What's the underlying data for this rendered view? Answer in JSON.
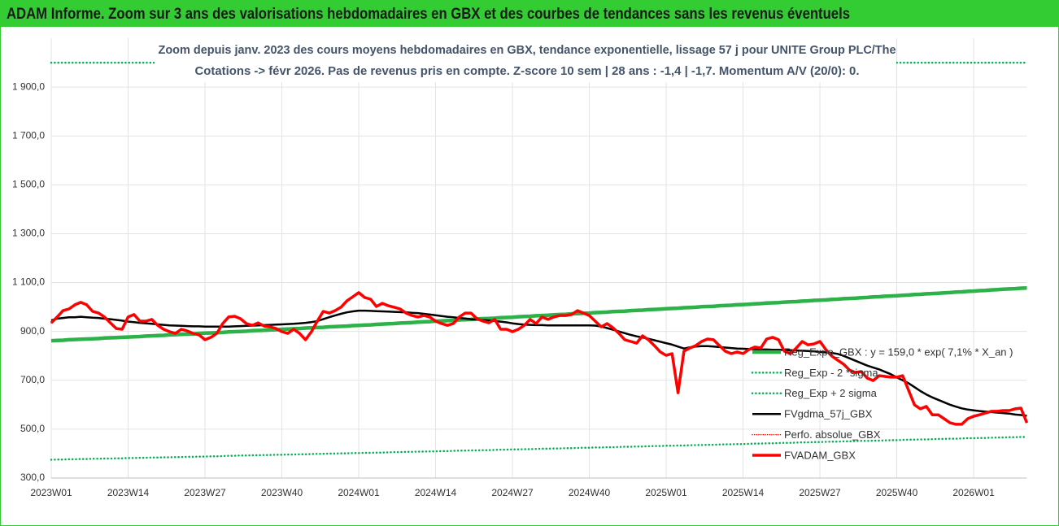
{
  "chart_data": {
    "type": "line",
    "header": "ADAM Informe. Zoom sur 3 ans des valorisations hebdomadaires en GBX et des courbes de tendances sans les revenus éventuels",
    "subtitle": [
      "Zoom depuis janv. 2023 des cours moyens hebdomadaires en GBX, tendance exponentielle, lissage 57 j pour UNITE Group PLC/The",
      "Cotations -> févr 2026.  Pas de revenus pris en compte. Z-score 10 sem | 28 ans : -1,4 | -1,7. Momentum A/V (20/0): 0."
    ],
    "categories": [
      "2023W01",
      null,
      null,
      null,
      null,
      null,
      null,
      null,
      null,
      null,
      null,
      null,
      null,
      "2023W14",
      null,
      null,
      null,
      null,
      null,
      null,
      null,
      null,
      null,
      null,
      null,
      null,
      "2023W27",
      null,
      null,
      null,
      null,
      null,
      null,
      null,
      null,
      null,
      null,
      null,
      null,
      "2023W40",
      null,
      null,
      null,
      null,
      null,
      null,
      null,
      null,
      null,
      null,
      null,
      null,
      "2024W01",
      null,
      null,
      null,
      null,
      null,
      null,
      null,
      null,
      null,
      null,
      null,
      null,
      "2024W14",
      null,
      null,
      null,
      null,
      null,
      null,
      null,
      null,
      null,
      null,
      null,
      null,
      "2024W27",
      null,
      null,
      null,
      null,
      null,
      null,
      null,
      null,
      null,
      null,
      null,
      null,
      "2024W40",
      null,
      null,
      null,
      null,
      null,
      null,
      null,
      null,
      null,
      null,
      null,
      null,
      "2025W01",
      null,
      null,
      null,
      null,
      null,
      null,
      null,
      null,
      null,
      null,
      null,
      null,
      "2025W14",
      null,
      null,
      null,
      null,
      null,
      null,
      null,
      null,
      null,
      null,
      null,
      null,
      "2025W27",
      null,
      null,
      null,
      null,
      null,
      null,
      null,
      null,
      null,
      null,
      null,
      null,
      "2025W40",
      null,
      null,
      null,
      null,
      null,
      null,
      null,
      null,
      null,
      null,
      null,
      null,
      "2026W01",
      null,
      null,
      null,
      null,
      null,
      null,
      null,
      null,
      null
    ],
    "ylim": [
      300,
      2100
    ],
    "yticks": [
      {
        "value": 300,
        "label": "300,0"
      },
      {
        "value": 500,
        "label": "500,0"
      },
      {
        "value": 700,
        "label": "700,0"
      },
      {
        "value": 900,
        "label": "900,0"
      },
      {
        "value": 1100,
        "label": "1 100,0"
      },
      {
        "value": 1300,
        "label": "1 300,0"
      },
      {
        "value": 1500,
        "label": "1 500,0"
      },
      {
        "value": 1700,
        "label": "1 700,0"
      },
      {
        "value": 1900,
        "label": "1 900,0"
      }
    ],
    "grid": true,
    "legend": "lower-right",
    "series": [
      {
        "name": "Reg_Expo_GBX : y = 159,0 * exp( 7,1% *  X_an )",
        "color": "#2db24a",
        "style": "solid",
        "width": 4.5,
        "values": [
          862,
          863,
          864,
          866,
          867,
          868,
          869,
          870,
          871,
          873,
          874,
          875,
          876,
          877,
          878,
          879,
          881,
          882,
          883,
          884,
          886,
          887,
          888,
          889,
          890,
          892,
          893,
          894,
          895,
          896,
          898,
          899,
          900,
          901,
          903,
          904,
          905,
          906,
          907,
          909,
          910,
          911,
          912,
          914,
          915,
          916,
          917,
          919,
          920,
          921,
          922,
          924,
          925,
          926,
          927,
          929,
          930,
          931,
          932,
          934,
          935,
          936,
          938,
          939,
          940,
          942,
          943,
          944,
          945,
          947,
          948,
          949,
          951,
          952,
          953,
          954,
          956,
          957,
          958,
          960,
          961,
          962,
          964,
          965,
          966,
          968,
          969,
          970,
          972,
          973,
          974,
          975,
          977,
          978,
          979,
          981,
          982,
          983,
          985,
          986,
          987,
          989,
          990,
          991,
          993,
          994,
          995,
          997,
          998,
          999,
          1001,
          1002,
          1003,
          1005,
          1006,
          1007,
          1009,
          1010,
          1011,
          1013,
          1014,
          1016,
          1017,
          1018,
          1020,
          1021,
          1022,
          1024,
          1025,
          1027,
          1028,
          1029,
          1031,
          1032,
          1034,
          1035,
          1036,
          1038,
          1039,
          1041,
          1042,
          1044,
          1045,
          1046,
          1048,
          1049,
          1051,
          1052,
          1054,
          1055,
          1056,
          1058,
          1059,
          1061,
          1062,
          1064,
          1065,
          1067,
          1068,
          1070,
          1071,
          1073,
          1074,
          1075,
          1077,
          1078
        ]
      },
      {
        "name": "Reg_Exp - 2 *sigma",
        "color": "#00b050",
        "style": "dotted",
        "width": 2.5,
        "values": [
          375,
          376,
          376,
          377,
          377,
          378,
          378,
          379,
          379,
          380,
          380,
          381,
          381,
          382,
          382,
          383,
          383,
          384,
          384,
          385,
          385,
          386,
          386,
          387,
          387,
          388,
          388,
          389,
          389,
          390,
          391,
          391,
          392,
          392,
          393,
          393,
          394,
          394,
          395,
          395,
          396,
          396,
          397,
          397,
          398,
          399,
          399,
          400,
          400,
          401,
          401,
          402,
          402,
          403,
          403,
          404,
          404,
          405,
          406,
          406,
          407,
          407,
          408,
          408,
          409,
          409,
          410,
          410,
          411,
          412,
          412,
          413,
          413,
          414,
          414,
          415,
          416,
          416,
          417,
          417,
          418,
          418,
          419,
          420,
          420,
          421,
          421,
          422,
          422,
          423,
          424,
          424,
          425,
          425,
          426,
          426,
          427,
          428,
          428,
          429,
          429,
          430,
          431,
          431,
          432,
          432,
          433,
          433,
          434,
          435,
          435,
          436,
          436,
          437,
          438,
          438,
          439,
          439,
          440,
          441,
          441,
          442,
          442,
          443,
          444,
          444,
          445,
          446,
          446,
          447,
          447,
          448,
          449,
          449,
          450,
          450,
          451,
          452,
          452,
          453,
          453,
          454,
          455,
          455,
          456,
          457,
          457,
          458,
          458,
          459,
          460,
          460,
          461,
          461,
          462,
          463,
          463,
          464,
          464,
          465,
          466,
          466,
          467,
          467,
          468,
          468
        ]
      },
      {
        "name": "Reg_Exp + 2 sigma",
        "color": "#00b050",
        "style": "dotted",
        "width": 2.5,
        "values": [
          2000,
          2000,
          2000,
          2000,
          2000,
          2000,
          2000,
          2000,
          2000,
          2000,
          2000,
          2000,
          2000,
          2000,
          2000,
          2000,
          2000,
          2000,
          2000,
          2000,
          2000,
          2000,
          2000,
          2000,
          2000,
          2000,
          2000,
          2000,
          2000,
          2000,
          2000,
          2000,
          2000,
          2000,
          2000,
          2000,
          2000,
          2000,
          2000,
          2000,
          2000,
          2000,
          2000,
          2000,
          2000,
          2000,
          2000,
          2000,
          2000,
          2000,
          2000,
          2000,
          2000,
          2000,
          2000,
          2000,
          2000,
          2000,
          2000,
          2000,
          2000,
          2000,
          2000,
          2000,
          2000,
          2000,
          2000,
          2000,
          2000,
          2000,
          2000,
          2000,
          2000,
          2000,
          2000,
          2000,
          2000,
          2000,
          2000,
          2000,
          2000,
          2000,
          2000,
          2000,
          2000,
          2000,
          2000,
          2000,
          2000,
          2000,
          2000,
          2000,
          2000,
          2000,
          2000,
          2000,
          2000,
          2000,
          2000,
          2000,
          2000,
          2000,
          2000,
          2000,
          2000,
          2000,
          2000,
          2000,
          2000,
          2000,
          2000,
          2000,
          2000,
          2000,
          2000,
          2000,
          2000,
          2000,
          2000,
          2000,
          2000,
          2000,
          2000,
          2000,
          2000,
          2000,
          2000,
          2000,
          2000,
          2000,
          2000,
          2000,
          2000,
          2000,
          2000,
          2000,
          2000,
          2000,
          2000,
          2000,
          2000,
          2000,
          2000,
          2000,
          2000,
          2000,
          2000,
          2000,
          2000,
          2000,
          2000,
          2000,
          2000,
          2000,
          2000,
          2000,
          2000,
          2000,
          2000,
          2000,
          2000,
          2000,
          2000,
          2000,
          2000,
          2000
        ]
      },
      {
        "name": "FVgdma_57j_GBX",
        "color": "#000000",
        "style": "solid",
        "width": 2.5,
        "values": [
          945,
          952,
          955,
          958,
          958,
          960,
          958,
          956,
          955,
          952,
          950,
          947,
          944,
          940,
          938,
          935,
          933,
          931,
          929,
          927,
          925,
          924,
          923,
          922,
          921,
          921,
          920,
          920,
          920,
          920,
          920,
          921,
          922,
          923,
          924,
          925,
          926,
          927,
          928,
          929,
          930,
          931,
          933,
          935,
          938,
          942,
          950,
          958,
          965,
          972,
          978,
          982,
          985,
          985,
          984,
          983,
          982,
          981,
          980,
          979,
          978,
          976,
          975,
          972,
          969,
          966,
          963,
          960,
          958,
          955,
          953,
          950,
          948,
          946,
          945,
          943,
          940,
          937,
          933,
          930,
          928,
          927,
          926,
          926,
          925,
          925,
          925,
          925,
          925,
          925,
          925,
          925,
          924,
          920,
          914,
          907,
          900,
          893,
          886,
          880,
          875,
          870,
          864,
          858,
          852,
          846,
          838,
          830,
          835,
          838,
          840,
          840,
          838,
          836,
          834,
          832,
          830,
          829,
          828,
          827,
          826,
          826,
          825,
          825,
          824,
          823,
          822,
          821,
          820,
          818,
          816,
          814,
          812,
          808,
          800,
          790,
          780,
          770,
          760,
          752,
          745,
          735,
          725,
          712,
          700,
          688,
          672,
          656,
          642,
          630,
          620,
          610,
          600,
          592,
          585,
          580,
          577,
          574,
          572,
          570,
          568,
          566,
          564,
          560,
          558,
          555
        ]
      },
      {
        "name": "Perfo. absolue_GBX",
        "color": "#ff0000",
        "style": "dotted",
        "width": 1.5,
        "values": [
          935,
          959,
          985,
          992,
          1009,
          1019,
          1009,
          982,
          975,
          959,
          935,
          912,
          909,
          959,
          969,
          942,
          942,
          949,
          925,
          909,
          899,
          892,
          909,
          902,
          892,
          886,
          866,
          876,
          892,
          932,
          959,
          962,
          952,
          932,
          925,
          935,
          922,
          919,
          912,
          899,
          892,
          909,
          892,
          866,
          899,
          942,
          982,
          975,
          985,
          999,
          1025,
          1042,
          1059,
          1039,
          1032,
          1002,
          1015,
          1005,
          999,
          992,
          975,
          965,
          959,
          965,
          959,
          942,
          932,
          925,
          932,
          959,
          975,
          975,
          952,
          942,
          935,
          949,
          909,
          909,
          899,
          909,
          925,
          949,
          932,
          959,
          949,
          959,
          965,
          965,
          969,
          985,
          975,
          965,
          942,
          919,
          932,
          915,
          892,
          866,
          859,
          852,
          882,
          866,
          842,
          816,
          802,
          809,
          649,
          819,
          832,
          842,
          859,
          869,
          866,
          842,
          819,
          809,
          816,
          809,
          826,
          836,
          832,
          869,
          876,
          866,
          819,
          809,
          832,
          859,
          845,
          849,
          859,
          826,
          799,
          782,
          766,
          742,
          732,
          736,
          709,
          699,
          719,
          716,
          713,
          713,
          719,
          659,
          599,
          583,
          593,
          559,
          559,
          543,
          526,
          520,
          520,
          543,
          553,
          559,
          566,
          573,
          573,
          576,
          576,
          583,
          586,
          526
        ]
      },
      {
        "name": "FVADAM_GBX",
        "color": "#ff0000",
        "style": "solid",
        "width": 3.5,
        "values": [
          935,
          959,
          985,
          992,
          1009,
          1019,
          1009,
          982,
          975,
          959,
          935,
          912,
          909,
          959,
          969,
          942,
          942,
          949,
          925,
          909,
          899,
          892,
          909,
          902,
          892,
          886,
          866,
          876,
          892,
          932,
          959,
          962,
          952,
          932,
          925,
          935,
          922,
          919,
          912,
          899,
          892,
          909,
          892,
          866,
          899,
          942,
          982,
          975,
          985,
          999,
          1025,
          1042,
          1059,
          1039,
          1032,
          1002,
          1015,
          1005,
          999,
          992,
          975,
          965,
          959,
          965,
          959,
          942,
          932,
          925,
          932,
          959,
          975,
          975,
          952,
          942,
          935,
          949,
          909,
          909,
          899,
          909,
          925,
          949,
          932,
          959,
          949,
          959,
          965,
          965,
          969,
          985,
          975,
          965,
          942,
          919,
          932,
          915,
          892,
          866,
          859,
          852,
          882,
          866,
          842,
          816,
          802,
          809,
          649,
          819,
          832,
          842,
          859,
          869,
          866,
          842,
          819,
          809,
          816,
          809,
          826,
          836,
          832,
          869,
          876,
          866,
          819,
          809,
          832,
          859,
          845,
          849,
          859,
          826,
          799,
          782,
          766,
          742,
          732,
          736,
          709,
          699,
          719,
          716,
          713,
          713,
          719,
          659,
          599,
          583,
          593,
          559,
          559,
          543,
          526,
          520,
          520,
          543,
          553,
          559,
          566,
          573,
          573,
          576,
          576,
          583,
          586,
          526
        ]
      }
    ]
  }
}
